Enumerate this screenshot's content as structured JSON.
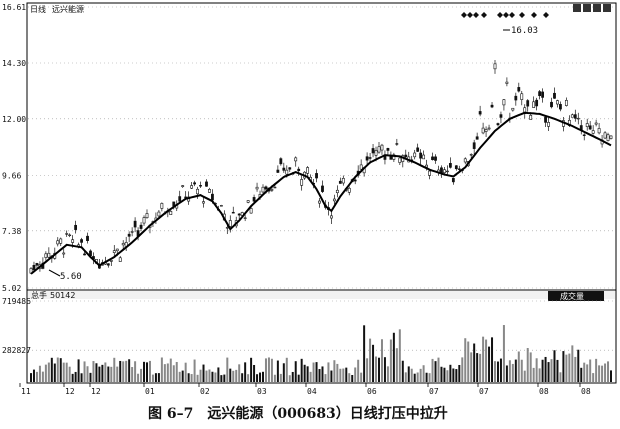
{
  "chart_data": [
    {
      "type": "candlestick",
      "header": {
        "period": "日线",
        "name": "远兴能源"
      },
      "y_ticks": [
        {
          "value": 5.02,
          "label": "5.02"
        },
        {
          "value": 7.38,
          "label": "7.38"
        },
        {
          "value": 9.66,
          "label": "9.66"
        },
        {
          "value": 12.0,
          "label": "12.00"
        },
        {
          "value": 14.3,
          "label": "14.30"
        },
        {
          "value": 16.61,
          "label": "16.61"
        }
      ],
      "ylim": [
        5.02,
        16.61
      ],
      "annotations": [
        {
          "text": "5.60",
          "price": 5.6
        },
        {
          "text": "16.03",
          "price": 16.03
        }
      ],
      "trend_points": [
        [
          0,
          5.6
        ],
        [
          6,
          6.2
        ],
        [
          12,
          6.8
        ],
        [
          17,
          6.7
        ],
        [
          20,
          6.3
        ],
        [
          23,
          5.95
        ],
        [
          28,
          6.3
        ],
        [
          34,
          6.9
        ],
        [
          40,
          7.6
        ],
        [
          46,
          8.2
        ],
        [
          52,
          8.7
        ],
        [
          57,
          8.85
        ],
        [
          61,
          8.6
        ],
        [
          64,
          8.1
        ],
        [
          67,
          7.45
        ],
        [
          70,
          7.8
        ],
        [
          74,
          8.4
        ],
        [
          80,
          9.1
        ],
        [
          85,
          9.6
        ],
        [
          89,
          9.8
        ],
        [
          93,
          9.6
        ],
        [
          96,
          9.1
        ],
        [
          99,
          8.4
        ],
        [
          101,
          8.2
        ],
        [
          104,
          8.8
        ],
        [
          109,
          9.6
        ],
        [
          114,
          10.2
        ],
        [
          119,
          10.5
        ],
        [
          124,
          10.45
        ],
        [
          129,
          10.2
        ],
        [
          134,
          9.9
        ],
        [
          139,
          9.7
        ],
        [
          142,
          9.62
        ],
        [
          146,
          10.0
        ],
        [
          151,
          10.8
        ],
        [
          156,
          11.5
        ],
        [
          161,
          12.0
        ],
        [
          166,
          12.25
        ],
        [
          171,
          12.2
        ],
        [
          176,
          12.0
        ],
        [
          182,
          11.7
        ],
        [
          187,
          11.4
        ],
        [
          192,
          11.1
        ],
        [
          195,
          10.9
        ]
      ],
      "volume": {
        "label": "总手",
        "value": "50142",
        "indicator_box": "成交量",
        "y_ticks": [
          {
            "value": 282827,
            "label": "282827"
          },
          {
            "value": 719486,
            "label": "719486"
          }
        ],
        "ymax": 719486
      },
      "x_labels": [
        "11",
        "12",
        "12",
        "01",
        "02",
        "03",
        "04",
        "06",
        "07",
        "07",
        "08",
        "08"
      ],
      "caption": "图 6–7　远兴能源（000683）日线打压中拉升",
      "colors": {
        "up": "#111111",
        "down": "#111111",
        "hatch": "#888888",
        "trend": "#000000"
      }
    }
  ]
}
